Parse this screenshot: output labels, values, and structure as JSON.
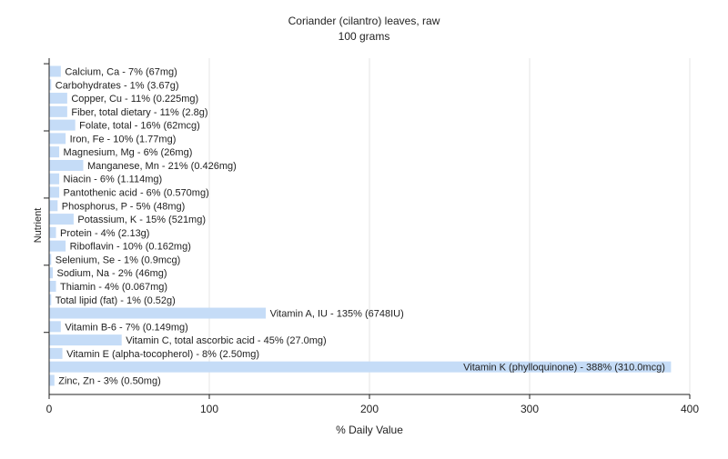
{
  "chart_data": {
    "type": "bar",
    "orientation": "horizontal",
    "title": "Coriander (cilantro) leaves, raw",
    "subtitle": "100 grams",
    "xlabel": "% Daily Value",
    "ylabel": "Nutrient",
    "xlim": [
      0,
      400
    ],
    "xticks": [
      0,
      100,
      200,
      300,
      400
    ],
    "grid": true,
    "bar_color": "#c5dcf7",
    "categories": [
      "Calcium, Ca",
      "Carbohydrates",
      "Copper, Cu",
      "Fiber, total dietary",
      "Folate, total",
      "Iron, Fe",
      "Magnesium, Mg",
      "Manganese, Mn",
      "Niacin",
      "Pantothenic acid",
      "Phosphorus, P",
      "Potassium, K",
      "Protein",
      "Riboflavin",
      "Selenium, Se",
      "Sodium, Na",
      "Thiamin",
      "Total lipid (fat)",
      "Vitamin A, IU",
      "Vitamin B-6",
      "Vitamin C, total ascorbic acid",
      "Vitamin E (alpha-tocopherol)",
      "Vitamin K (phylloquinone)",
      "Zinc, Zn"
    ],
    "values": [
      7,
      1,
      11,
      11,
      16,
      10,
      6,
      21,
      6,
      6,
      5,
      15,
      4,
      10,
      1,
      2,
      4,
      1,
      135,
      7,
      45,
      8,
      388,
      3
    ],
    "labels": [
      "Calcium, Ca - 7% (67mg)",
      "Carbohydrates - 1% (3.67g)",
      "Copper, Cu - 11% (0.225mg)",
      "Fiber, total dietary - 11% (2.8g)",
      "Folate, total - 16% (62mcg)",
      "Iron, Fe - 10% (1.77mg)",
      "Magnesium, Mg - 6% (26mg)",
      "Manganese, Mn - 21% (0.426mg)",
      "Niacin - 6% (1.114mg)",
      "Pantothenic acid - 6% (0.570mg)",
      "Phosphorus, P - 5% (48mg)",
      "Potassium, K - 15% (521mg)",
      "Protein - 4% (2.13g)",
      "Riboflavin - 10% (0.162mg)",
      "Selenium, Se - 1% (0.9mcg)",
      "Sodium, Na - 2% (46mg)",
      "Thiamin - 4% (0.067mg)",
      "Total lipid (fat) - 1% (0.52g)",
      "Vitamin A, IU - 135% (6748IU)",
      "Vitamin B-6 - 7% (0.149mg)",
      "Vitamin C, total ascorbic acid - 45% (27.0mg)",
      "Vitamin E (alpha-tocopherol) - 8% (2.50mg)",
      "Vitamin K (phylloquinone) - 388% (310.0mcg)",
      "Zinc, Zn - 3% (0.50mg)"
    ]
  }
}
